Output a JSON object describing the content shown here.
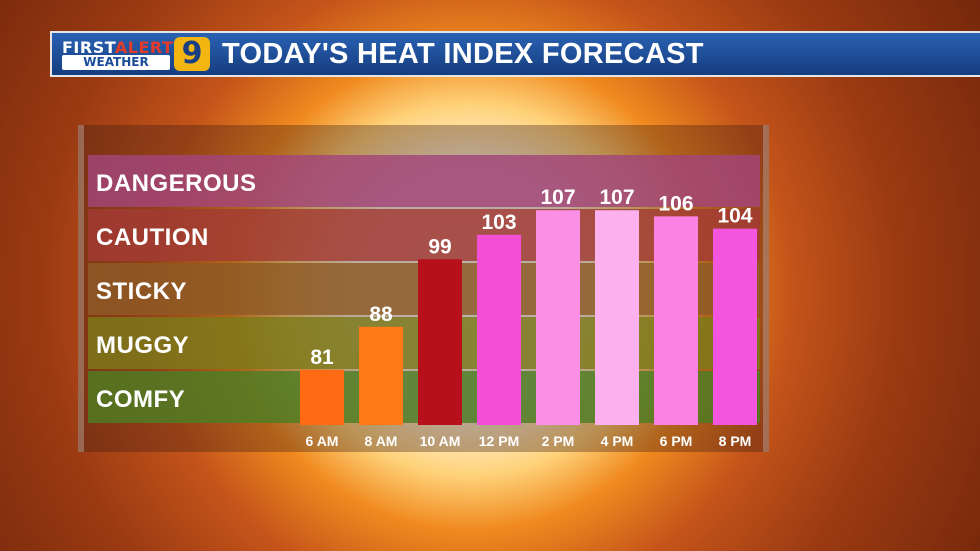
{
  "header": {
    "logo_first": "FIRST",
    "logo_alert": "ALERT",
    "logo_weather": "WEATHER",
    "logo_number": "9",
    "title": "TODAY'S HEAT INDEX FORECAST"
  },
  "chart_data": {
    "type": "bar",
    "title": "TODAY'S HEAT INDEX FORECAST",
    "categories": [
      "6 AM",
      "8 AM",
      "10 AM",
      "12 PM",
      "2 PM",
      "4 PM",
      "6 PM",
      "8 PM"
    ],
    "values": [
      81,
      88,
      99,
      103,
      107,
      107,
      106,
      104
    ],
    "bar_colors": [
      "#ff6a12",
      "#ff7a16",
      "#b8101a",
      "#f24fd6",
      "#fb8fe6",
      "#fcb0ee",
      "#fb82e3",
      "#f455de"
    ],
    "bands": [
      {
        "label": "COMFY",
        "color": "#4d7e23"
      },
      {
        "label": "MUGGY",
        "color": "#7c7a1a"
      },
      {
        "label": "STICKY",
        "color": "#8e5a26"
      },
      {
        "label": "CAUTION",
        "color": "#a23a35"
      },
      {
        "label": "DANGEROUS",
        "color": "#a2457a"
      }
    ],
    "ylim": [
      72,
      116
    ],
    "xlabel": "",
    "ylabel": ""
  }
}
